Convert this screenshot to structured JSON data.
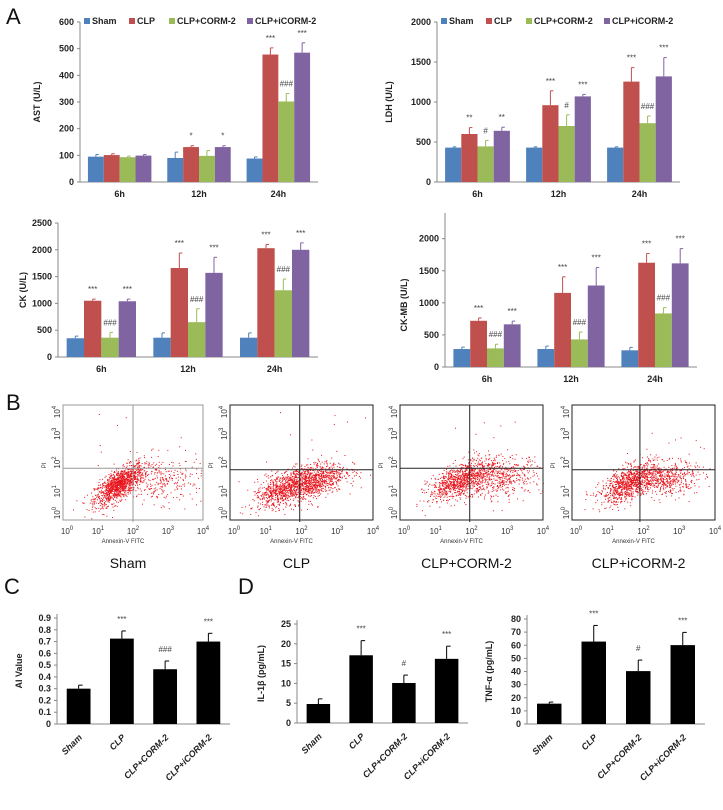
{
  "panels": {
    "A": "A",
    "B": "B",
    "C": "C",
    "D": "D"
  },
  "group_colors": {
    "Sham": "#4f81bd",
    "CLP": "#c0504d",
    "CLP+CORM-2": "#9bbb59",
    "CLP+iCORM-2": "#8064a2"
  },
  "chart_data": [
    {
      "id": "ast",
      "type": "bar",
      "ylabel": "AST (U/L)",
      "ylim": [
        0,
        600
      ],
      "yticks": [
        0,
        100,
        200,
        300,
        400,
        500,
        600
      ],
      "categories": [
        "6h",
        "12h",
        "24h"
      ],
      "legend": "top",
      "series": [
        {
          "name": "Sham",
          "values": [
            95,
            90,
            88
          ],
          "errors": [
            8,
            22,
            6
          ],
          "annotations": [
            "",
            "",
            ""
          ]
        },
        {
          "name": "CLP",
          "values": [
            101,
            131,
            478
          ],
          "errors": [
            5,
            5,
            25
          ],
          "annotations": [
            "",
            "*",
            "***"
          ]
        },
        {
          "name": "CLP+CORM-2",
          "values": [
            93,
            98,
            302
          ],
          "errors": [
            4,
            20,
            30
          ],
          "annotations": [
            "",
            "",
            "###"
          ]
        },
        {
          "name": "CLP+iCORM-2",
          "values": [
            99,
            131,
            485
          ],
          "errors": [
            4,
            5,
            37
          ],
          "annotations": [
            "",
            "*",
            "***"
          ]
        }
      ]
    },
    {
      "id": "ldh",
      "type": "bar",
      "ylabel": "LDH (U/L)",
      "ylim": [
        0,
        2000
      ],
      "yticks": [
        0,
        500,
        1000,
        1500,
        2000
      ],
      "categories": [
        "6h",
        "12h",
        "24h"
      ],
      "legend": "top",
      "series": [
        {
          "name": "Sham",
          "values": [
            430,
            430,
            430
          ],
          "errors": [
            10,
            10,
            10
          ],
          "annotations": [
            "",
            "",
            ""
          ]
        },
        {
          "name": "CLP",
          "values": [
            600,
            960,
            1255
          ],
          "errors": [
            80,
            180,
            175
          ],
          "annotations": [
            "**",
            "***",
            "***"
          ]
        },
        {
          "name": "CLP+CORM-2",
          "values": [
            445,
            700,
            735
          ],
          "errors": [
            75,
            140,
            90
          ],
          "annotations": [
            "#",
            "#",
            "###"
          ]
        },
        {
          "name": "CLP+iCORM-2",
          "values": [
            640,
            1070,
            1320
          ],
          "errors": [
            45,
            25,
            235
          ],
          "annotations": [
            "**",
            "***",
            "***"
          ]
        }
      ]
    },
    {
      "id": "ck",
      "type": "bar",
      "ylabel": "CK (U/L)",
      "ylim": [
        0,
        2500
      ],
      "yticks": [
        0,
        500,
        1000,
        1500,
        2000,
        2500
      ],
      "categories": [
        "6h",
        "12h",
        "24h"
      ],
      "series": [
        {
          "name": "Sham",
          "values": [
            350,
            360,
            360
          ],
          "errors": [
            40,
            90,
            90
          ],
          "annotations": [
            "",
            "",
            ""
          ]
        },
        {
          "name": "CLP",
          "values": [
            1050,
            1660,
            2030
          ],
          "errors": [
            30,
            280,
            70
          ],
          "annotations": [
            "***",
            "***",
            "***"
          ]
        },
        {
          "name": "CLP+CORM-2",
          "values": [
            360,
            650,
            1245
          ],
          "errors": [
            100,
            250,
            210
          ],
          "annotations": [
            "###",
            "###",
            "###"
          ]
        },
        {
          "name": "CLP+iCORM-2",
          "values": [
            1040,
            1570,
            2000
          ],
          "errors": [
            40,
            290,
            130
          ],
          "annotations": [
            "***",
            "***",
            "***"
          ]
        }
      ]
    },
    {
      "id": "ckmb",
      "type": "bar",
      "ylabel": "CK-MB (U/L)",
      "ylim": [
        0,
        2400
      ],
      "yticks": [
        0,
        500,
        1000,
        1500,
        2000
      ],
      "categories": [
        "6h",
        "12h",
        "24h"
      ],
      "series": [
        {
          "name": "Sham",
          "values": [
            280,
            280,
            260
          ],
          "errors": [
            30,
            45,
            45
          ],
          "annotations": [
            "",
            "",
            ""
          ]
        },
        {
          "name": "CLP",
          "values": [
            720,
            1155,
            1625
          ],
          "errors": [
            45,
            250,
            145
          ],
          "annotations": [
            "***",
            "***",
            "***"
          ]
        },
        {
          "name": "CLP+CORM-2",
          "values": [
            290,
            430,
            835
          ],
          "errors": [
            65,
            115,
            90
          ],
          "annotations": [
            "###",
            "###",
            "###"
          ]
        },
        {
          "name": "CLP+iCORM-2",
          "values": [
            665,
            1270,
            1615
          ],
          "errors": [
            50,
            280,
            230
          ],
          "annotations": [
            "***",
            "***",
            "***"
          ]
        }
      ]
    },
    {
      "id": "flow",
      "type": "scatter",
      "xlabel": "Annexin-V FITC",
      "ylabel": "PI",
      "scale": "log",
      "xticks": [
        "0",
        "1",
        "2",
        "3",
        "4"
      ],
      "yticks": [
        "0",
        "1",
        "2",
        "3",
        "4"
      ],
      "tick_base": "10",
      "panels": [
        "Sham",
        "CLP",
        "CLP+CORM-2",
        "CLP+iCORM-2"
      ]
    },
    {
      "id": "ai",
      "type": "bar",
      "ylabel": "AI Value",
      "ylim": [
        0,
        0.9
      ],
      "yticks": [
        "0",
        "0.1",
        "0.2",
        "0.3",
        "0.4",
        "0.5",
        "0.6",
        "0.7",
        "0.8",
        "0.9"
      ],
      "categories": [
        "Sham",
        "CLP",
        "CLP+CORM-2",
        "CLP+iCORM-2"
      ],
      "values": [
        0.3,
        0.725,
        0.465,
        0.7
      ],
      "errors": [
        0.03,
        0.065,
        0.07,
        0.07
      ],
      "annotations": [
        "",
        "***",
        "###",
        "***"
      ],
      "color": "#000000"
    },
    {
      "id": "il1b",
      "type": "bar",
      "ylabel": "IL-1β (pg/mL)",
      "ylim": [
        0,
        25
      ],
      "yticks": [
        "0",
        "5",
        "10",
        "15",
        "20",
        "25"
      ],
      "categories": [
        "Sham",
        "CLP",
        "CLP+CORM-2",
        "CLP+iCORM-2"
      ],
      "values": [
        4.8,
        17.1,
        10.1,
        16.2
      ],
      "errors": [
        1.3,
        3.7,
        2.0,
        3.2
      ],
      "annotations": [
        "",
        "***",
        "#",
        "***"
      ],
      "color": "#000000"
    },
    {
      "id": "tnf",
      "type": "bar",
      "ylabel": "TNF-α (pg/mL)",
      "ylim": [
        0,
        80
      ],
      "yticks": [
        "0",
        "10",
        "20",
        "30",
        "40",
        "50",
        "60",
        "70",
        "80"
      ],
      "categories": [
        "Sham",
        "CLP",
        "CLP+CORM-2",
        "CLP+iCORM-2"
      ],
      "values": [
        15.5,
        62.8,
        40.3,
        60.1
      ],
      "errors": [
        1.2,
        12.3,
        8.4,
        9.7
      ],
      "annotations": [
        "",
        "***",
        "#",
        "***"
      ],
      "color": "#000000"
    }
  ]
}
